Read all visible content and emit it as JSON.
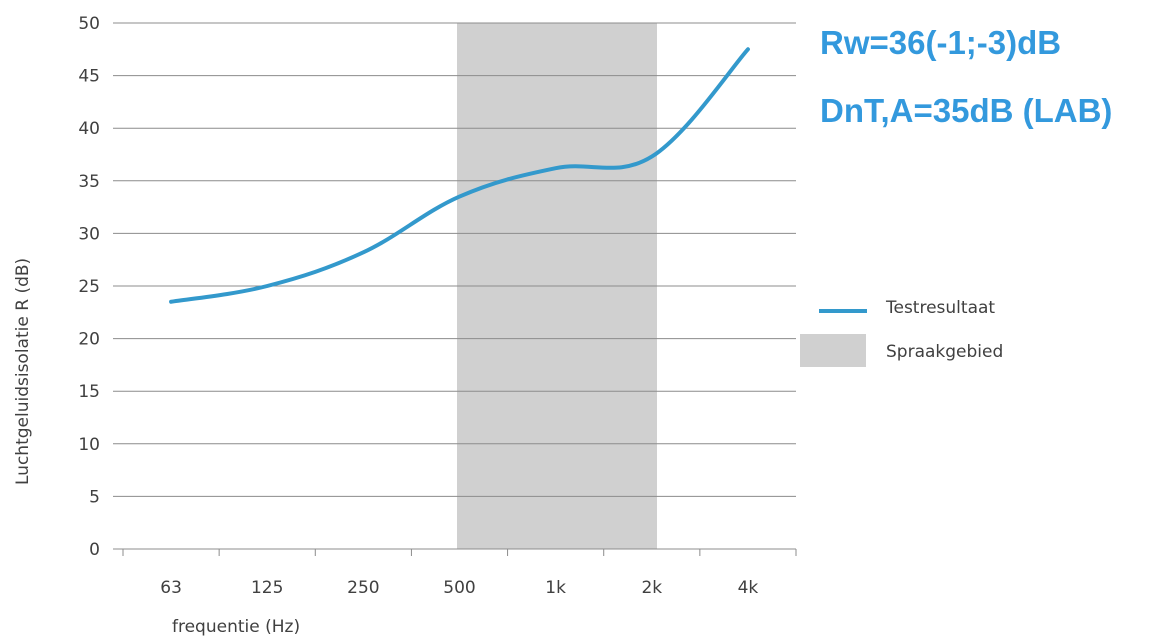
{
  "chart_data": {
    "type": "line",
    "categories": [
      "63",
      "125",
      "250",
      "500",
      "1k",
      "2k",
      "4k"
    ],
    "series": [
      {
        "name": "Testresultaat",
        "values": [
          23.5,
          25.0,
          28.2,
          33.5,
          36.2,
          37.3,
          47.5
        ]
      }
    ],
    "shaded_region": {
      "name": "Spraakgebied",
      "from": 3,
      "to": 5
    },
    "xlabel": "frequentie (Hz)",
    "ylabel": "Luchtgeluidsisolatie  R (dB)",
    "ylim": [
      0,
      50
    ],
    "yticks": [
      "0",
      "5",
      "10",
      "15",
      "20",
      "25",
      "30",
      "35",
      "40",
      "45",
      "50"
    ],
    "annotations": [
      "Rw=36(-1;-3)dB",
      "DnT,A=35dB (LAB)"
    ],
    "grid": true,
    "legend_position": "right",
    "colors": {
      "line": "#3399cc",
      "region": "#d0d0d0",
      "annotation": "#3399dd",
      "grid": "#8c8c8c"
    }
  }
}
